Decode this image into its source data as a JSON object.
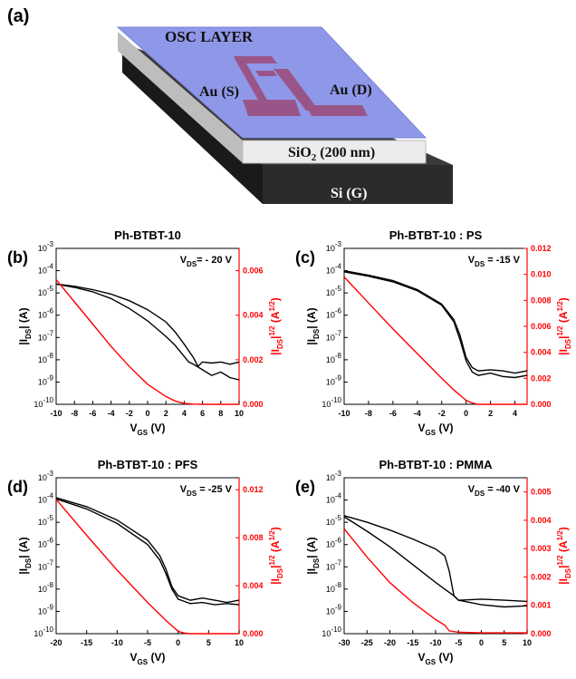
{
  "schematic": {
    "label": "(a)",
    "osc_layer": "OSC LAYER",
    "source": "Au (S)",
    "drain": "Au (D)",
    "oxide": "SiO",
    "oxide_sub": "2",
    "oxide_thickness": " (200 nm)",
    "gate": "Si (G)",
    "colors": {
      "osc": "#8f98e8",
      "electrode": "#9c4a78",
      "oxide": "#e8e8e8",
      "si": "#2e2e2e"
    }
  },
  "chart_data": [
    {
      "type": "line",
      "panel": "(b)",
      "title": "Ph-BTBT-10",
      "annotation": "V_DS= - 20 V",
      "xlabel": "V_GS (V)",
      "ylabel_left": "|I_DS| (A)",
      "ylabel_right": "|I_DS|^1/2 (A^1/2)",
      "xlim": [
        -10,
        10
      ],
      "xticks": [
        -10,
        -8,
        -6,
        -4,
        -2,
        0,
        2,
        4,
        6,
        8,
        10
      ],
      "ylim_left_log10": [
        -10,
        -3
      ],
      "yticks_left": [
        "10^-10",
        "10^-9",
        "10^-8",
        "10^-7",
        "10^-6",
        "10^-5",
        "10^-4",
        "10^-3"
      ],
      "ylim_right": [
        0,
        0.007
      ],
      "yticks_right": [
        "0.000",
        "0.002",
        "0.004",
        "0.006"
      ],
      "yticks_right_values": [
        0,
        0.002,
        0.004,
        0.006
      ],
      "series": [
        {
          "axis": "left",
          "color": "#000000",
          "x": [
            -10,
            -8,
            -6,
            -4,
            -2,
            0,
            2,
            3,
            4,
            5,
            5.5,
            6,
            7,
            8,
            9,
            10
          ],
          "y_log10": [
            -4.6,
            -4.7,
            -4.85,
            -5.05,
            -5.35,
            -5.75,
            -6.3,
            -6.75,
            -7.3,
            -7.9,
            -8.3,
            -8.1,
            -8.15,
            -8.1,
            -8.2,
            -8.1
          ]
        },
        {
          "axis": "left",
          "color": "#000000",
          "x": [
            -10,
            -8,
            -6,
            -4,
            -2,
            0,
            2,
            3,
            4,
            4.5,
            5,
            6,
            7,
            8,
            9,
            10
          ],
          "y_log10": [
            -4.6,
            -4.75,
            -4.95,
            -5.25,
            -5.7,
            -6.25,
            -6.95,
            -7.35,
            -7.85,
            -8.1,
            -8.2,
            -8.45,
            -8.7,
            -8.55,
            -8.8,
            -8.9
          ]
        },
        {
          "axis": "right",
          "color": "#ff0000",
          "x": [
            -10,
            -8,
            -6,
            -4,
            -2,
            0,
            2,
            3,
            4,
            5,
            6,
            7,
            8,
            10
          ],
          "y": [
            0.0056,
            0.0046,
            0.0036,
            0.0026,
            0.0017,
            0.0009,
            0.00035,
            0.00015,
            4e-05,
            1e-05,
            0,
            0,
            0,
            0
          ]
        }
      ]
    },
    {
      "type": "line",
      "panel": "(c)",
      "title": "Ph-BTBT-10 : PS",
      "annotation": "V_DS = -15 V",
      "xlabel": "V_GS (V)",
      "ylabel_left": "|I_DS| (A)",
      "ylabel_right": "|I_DS|^1/2 (A^1/2)",
      "xlim": [
        -10,
        5
      ],
      "xticks": [
        -10,
        -8,
        -6,
        -4,
        -2,
        0,
        2,
        4
      ],
      "ylim_left_log10": [
        -10,
        -3
      ],
      "yticks_left": [
        "10^-10",
        "10^-9",
        "10^-8",
        "10^-7",
        "10^-6",
        "10^-5",
        "10^-4",
        "10^-3"
      ],
      "ylim_right": [
        0,
        0.012
      ],
      "yticks_right": [
        "0.000",
        "0.002",
        "0.004",
        "0.006",
        "0.008",
        "0.010",
        "0.012"
      ],
      "yticks_right_values": [
        0,
        0.002,
        0.004,
        0.006,
        0.008,
        0.01,
        0.012
      ],
      "series": [
        {
          "axis": "left",
          "color": "#000000",
          "x": [
            -10,
            -8,
            -6,
            -4,
            -2,
            -1,
            -0.5,
            0,
            0.5,
            1,
            2,
            3,
            4,
            5
          ],
          "y_log10": [
            -4.0,
            -4.2,
            -4.45,
            -4.85,
            -5.5,
            -6.2,
            -6.9,
            -7.9,
            -8.35,
            -8.5,
            -8.45,
            -8.5,
            -8.6,
            -8.5
          ]
        },
        {
          "axis": "left",
          "color": "#000000",
          "x": [
            -10,
            -8,
            -6,
            -4,
            -2,
            -1,
            -0.5,
            0,
            0.5,
            1,
            2,
            3,
            4,
            5
          ],
          "y_log10": [
            -4.05,
            -4.25,
            -4.5,
            -4.9,
            -5.55,
            -6.3,
            -7.1,
            -8.05,
            -8.55,
            -8.7,
            -8.6,
            -8.75,
            -8.8,
            -8.7
          ]
        },
        {
          "axis": "right",
          "color": "#ff0000",
          "x": [
            -10,
            -8,
            -6,
            -4,
            -2,
            -1,
            0,
            0.5,
            1,
            2,
            5
          ],
          "y": [
            0.0098,
            0.0078,
            0.0058,
            0.0039,
            0.002,
            0.0011,
            0.0003,
            0.0001,
            0,
            0,
            0
          ]
        }
      ]
    },
    {
      "type": "line",
      "panel": "(d)",
      "title": "Ph-BTBT-10 : PFS",
      "annotation": "V_DS = -25 V",
      "xlabel": "V_GS (V)",
      "ylabel_left": "|I_DS| (A)",
      "ylabel_right": "|I_DS|^1/2 (A^1/2)",
      "xlim": [
        -20,
        10
      ],
      "xticks": [
        -20,
        -15,
        -10,
        -5,
        0,
        5,
        10
      ],
      "ylim_left_log10": [
        -10,
        -3
      ],
      "yticks_left": [
        "10^-10",
        "10^-9",
        "10^-8",
        "10^-7",
        "10^-6",
        "10^-5",
        "10^-4",
        "10^-3"
      ],
      "ylim_right": [
        0,
        0.013
      ],
      "yticks_right": [
        "0.000",
        "0.004",
        "0.008",
        "0.012"
      ],
      "yticks_right_values": [
        0,
        0.004,
        0.008,
        0.012
      ],
      "series": [
        {
          "axis": "left",
          "color": "#000000",
          "x": [
            -20,
            -15,
            -10,
            -5,
            -3,
            -2,
            -1,
            0,
            1,
            2,
            4,
            6,
            8,
            10
          ],
          "y_log10": [
            -3.9,
            -4.3,
            -4.9,
            -5.8,
            -6.5,
            -7.1,
            -7.9,
            -8.3,
            -8.4,
            -8.5,
            -8.4,
            -8.5,
            -8.6,
            -8.5
          ]
        },
        {
          "axis": "left",
          "color": "#000000",
          "x": [
            -20,
            -15,
            -10,
            -5,
            -3,
            -2,
            -1,
            0,
            1,
            2,
            4,
            6,
            8,
            10
          ],
          "y_log10": [
            -3.95,
            -4.4,
            -5.05,
            -6.0,
            -6.7,
            -7.3,
            -8.0,
            -8.45,
            -8.55,
            -8.65,
            -8.6,
            -8.7,
            -8.65,
            -8.7
          ]
        },
        {
          "axis": "right",
          "color": "#ff0000",
          "x": [
            -20,
            -15,
            -10,
            -5,
            -2,
            0,
            1,
            2,
            5,
            10
          ],
          "y": [
            0.0112,
            0.0082,
            0.0053,
            0.0026,
            0.0011,
            0.0002,
            5e-05,
            0,
            0,
            0
          ]
        }
      ]
    },
    {
      "type": "line",
      "panel": "(e)",
      "title": "Ph-BTBT-10 : PMMA",
      "annotation": "V_DS = -40 V",
      "xlabel": "V_GS (V)",
      "ylabel_left": "|I_DS| (A)",
      "ylabel_right": "|I_DS|^1/2 (A^1/2)",
      "xlim": [
        -30,
        10
      ],
      "xticks": [
        -30,
        -25,
        -20,
        -15,
        -10,
        -5,
        0,
        5,
        10
      ],
      "ylim_left_log10": [
        -10,
        -3
      ],
      "yticks_left": [
        "10^-10",
        "10^-9",
        "10^-8",
        "10^-7",
        "10^-6",
        "10^-5",
        "10^-4",
        "10^-3"
      ],
      "ylim_right": [
        0,
        0.0055
      ],
      "yticks_right": [
        "0.000",
        "0.001",
        "0.002",
        "0.003",
        "0.004",
        "0.005"
      ],
      "yticks_right_values": [
        0,
        0.001,
        0.002,
        0.003,
        0.004,
        0.005
      ],
      "series": [
        {
          "axis": "left",
          "color": "#000000",
          "x": [
            -30,
            -25,
            -20,
            -15,
            -10,
            -8,
            -7,
            -6,
            -5,
            0,
            5,
            10
          ],
          "y_log10": [
            -4.7,
            -5.0,
            -5.35,
            -5.75,
            -6.2,
            -6.5,
            -7.2,
            -8.3,
            -8.5,
            -8.45,
            -8.5,
            -8.55
          ]
        },
        {
          "axis": "left",
          "color": "#000000",
          "x": [
            -30,
            -25,
            -20,
            -15,
            -10,
            -8,
            -6,
            -5,
            0,
            5,
            10
          ],
          "y_log10": [
            -4.75,
            -5.4,
            -6.1,
            -6.9,
            -7.7,
            -8.0,
            -8.3,
            -8.5,
            -8.7,
            -8.8,
            -8.75
          ]
        },
        {
          "axis": "right",
          "color": "#ff0000",
          "x": [
            -30,
            -25,
            -20,
            -15,
            -10,
            -8,
            -7,
            -5,
            0,
            10
          ],
          "y": [
            0.0037,
            0.0027,
            0.0018,
            0.0011,
            0.0005,
            0.0003,
            0.0001,
            5e-05,
            3e-05,
            3e-05
          ]
        }
      ]
    }
  ]
}
